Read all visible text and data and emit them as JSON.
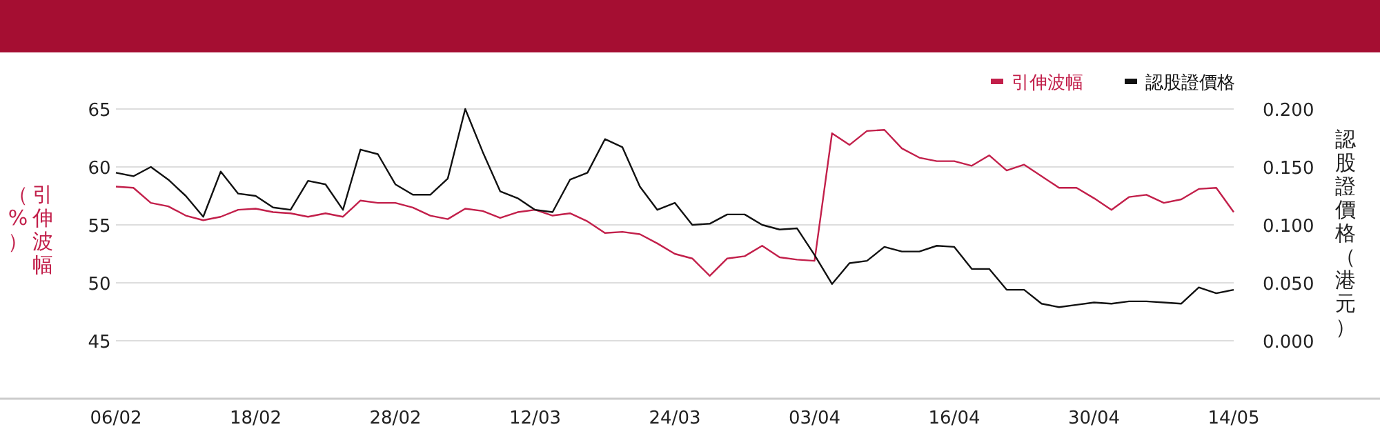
{
  "chart_data": {
    "type": "line",
    "categories": [
      "06/02",
      null,
      null,
      null,
      null,
      null,
      null,
      null,
      "18/02",
      null,
      null,
      null,
      null,
      null,
      null,
      null,
      "28/02",
      null,
      null,
      null,
      null,
      null,
      null,
      null,
      "12/03",
      null,
      null,
      null,
      null,
      null,
      null,
      null,
      "24/03",
      null,
      null,
      null,
      null,
      null,
      null,
      null,
      "03/04",
      null,
      null,
      null,
      null,
      null,
      null,
      null,
      "16/04",
      null,
      null,
      null,
      null,
      null,
      null,
      null,
      "30/04",
      null,
      null,
      null,
      null,
      null,
      null,
      null,
      "14/05"
    ],
    "ylabel": "引伸波幅（%）",
    "y2label": "認股證價格（港元）",
    "ylim": [
      40,
      65
    ],
    "yticks": [
      45,
      50,
      55,
      60,
      65
    ],
    "y2lim": [
      -0.05,
      0.2
    ],
    "y2ticks": [
      {
        "value": 0,
        "label": "0.000"
      },
      {
        "value": 0.05,
        "label": "0.050"
      },
      {
        "value": 0.1,
        "label": "0.100"
      },
      {
        "value": 0.15,
        "label": "0.150"
      },
      {
        "value": 0.2,
        "label": "0.200"
      }
    ],
    "grid": "y",
    "legend": "top right",
    "series": [
      {
        "name": "引伸波幅",
        "color": "#c21f4a",
        "values": [
          58.3,
          58.2,
          56.9,
          56.6,
          55.8,
          55.4,
          55.7,
          56.3,
          56.4,
          56.1,
          56.0,
          55.7,
          56.0,
          55.7,
          57.1,
          56.9,
          56.9,
          56.5,
          55.8,
          55.5,
          56.4,
          56.2,
          55.6,
          56.1,
          56.3,
          55.8,
          56.0,
          55.3,
          54.3,
          54.4,
          54.2,
          53.4,
          52.5,
          52.1,
          50.6,
          52.1,
          52.3,
          53.2,
          52.2,
          52.0,
          51.9,
          62.9,
          61.9,
          63.1,
          63.2,
          61.6,
          60.8,
          60.5,
          60.5,
          60.1,
          61.0,
          59.7,
          60.2,
          59.2,
          58.2,
          58.2,
          57.3,
          56.3,
          57.4,
          57.6,
          56.9,
          57.2,
          58.1,
          58.2,
          56.1
        ]
      },
      {
        "name": "認股證價格",
        "color": "#111111",
        "axis": "y2",
        "values": [
          0.145,
          0.142,
          0.15,
          0.139,
          0.125,
          0.107,
          0.146,
          0.127,
          0.125,
          0.115,
          0.113,
          0.138,
          0.135,
          0.113,
          0.165,
          0.161,
          0.135,
          0.126,
          0.126,
          0.14,
          0.2,
          0.163,
          0.129,
          0.123,
          0.113,
          0.111,
          0.139,
          0.145,
          0.174,
          0.167,
          0.133,
          0.113,
          0.119,
          0.1,
          0.101,
          0.109,
          0.109,
          0.1,
          0.096,
          0.097,
          0.074,
          0.049,
          0.067,
          0.069,
          0.081,
          0.077,
          0.077,
          0.082,
          0.081,
          0.062,
          0.062,
          0.044,
          0.044,
          0.032,
          0.029,
          0.031,
          0.033,
          0.032,
          0.034,
          0.034,
          0.033,
          0.032,
          0.046,
          0.041,
          0.044
        ]
      }
    ]
  }
}
